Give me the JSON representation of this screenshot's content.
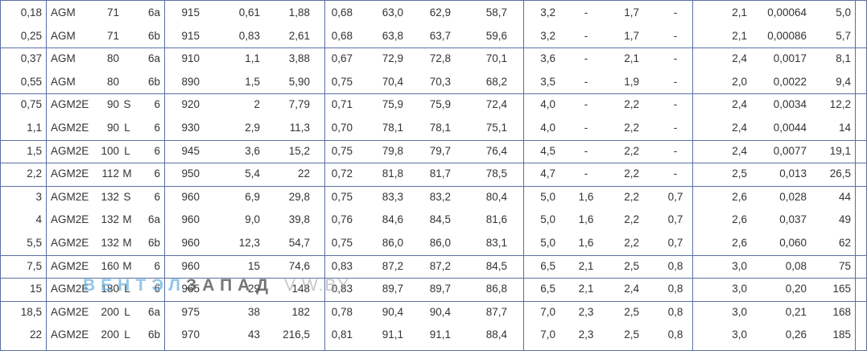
{
  "colors": {
    "grid": "#5b6fa3",
    "text": "#333333",
    "watermark_blue": "#6fb3df"
  },
  "watermark": {
    "part1": "ВЕНТ",
    "part2": "ЭЛ",
    "part3": "ЗАПАД",
    "part4": "V.W.BY"
  },
  "groups": [
    {
      "rows": [
        [
          "0,18",
          "AGM",
          "71",
          "",
          "6a",
          "915",
          "0,61",
          "1,88",
          "0,68",
          "63,0",
          "62,9",
          "58,7",
          "3,2",
          "-",
          "1,7",
          "-",
          "2,1",
          "0,00064",
          "5,0"
        ],
        [
          "0,25",
          "AGM",
          "71",
          "",
          "6b",
          "915",
          "0,83",
          "2,61",
          "0,68",
          "63,8",
          "63,7",
          "59,6",
          "3,2",
          "-",
          "1,7",
          "-",
          "2,1",
          "0,00086",
          "5,7"
        ]
      ]
    },
    {
      "rows": [
        [
          "0,37",
          "AGM",
          "80",
          "",
          "6a",
          "910",
          "1,1",
          "3,88",
          "0,67",
          "72,9",
          "72,8",
          "70,1",
          "3,6",
          "-",
          "2,1",
          "-",
          "2,4",
          "0,0017",
          "8,1"
        ],
        [
          "0,55",
          "AGM",
          "80",
          "",
          "6b",
          "890",
          "1,5",
          "5,90",
          "0,75",
          "70,4",
          "70,3",
          "68,2",
          "3,5",
          "-",
          "1,9",
          "-",
          "2,0",
          "0,0022",
          "9,4"
        ]
      ]
    },
    {
      "rows": [
        [
          "0,75",
          "AGM2E",
          "90",
          "S",
          "6",
          "920",
          "2",
          "7,79",
          "0,71",
          "75,9",
          "75,9",
          "72,4",
          "4,0",
          "-",
          "2,2",
          "-",
          "2,4",
          "0,0034",
          "12,2"
        ],
        [
          "1,1",
          "AGM2E",
          "90",
          "L",
          "6",
          "930",
          "2,9",
          "11,3",
          "0,70",
          "78,1",
          "78,1",
          "75,1",
          "4,0",
          "-",
          "2,2",
          "-",
          "2,4",
          "0,0044",
          "14"
        ]
      ]
    },
    {
      "rows": [
        [
          "1,5",
          "AGM2E",
          "100",
          "L",
          "6",
          "945",
          "3,6",
          "15,2",
          "0,75",
          "79,8",
          "79,7",
          "76,4",
          "4,5",
          "-",
          "2,2",
          "-",
          "2,4",
          "0,0077",
          "19,1"
        ]
      ]
    },
    {
      "rows": [
        [
          "2,2",
          "AGM2E",
          "112",
          "M",
          "6",
          "950",
          "5,4",
          "22",
          "0,72",
          "81,8",
          "81,7",
          "78,5",
          "4,7",
          "-",
          "2,2",
          "-",
          "2,5",
          "0,013",
          "26,5"
        ]
      ]
    },
    {
      "rows": [
        [
          "3",
          "AGM2E",
          "132",
          "S",
          "6",
          "960",
          "6,9",
          "29,8",
          "0,75",
          "83,3",
          "83,2",
          "80,4",
          "5,0",
          "1,6",
          "2,2",
          "0,7",
          "2,6",
          "0,028",
          "44"
        ],
        [
          "4",
          "AGM2E",
          "132",
          "M",
          "6a",
          "960",
          "9,0",
          "39,8",
          "0,76",
          "84,6",
          "84,5",
          "81,6",
          "5,0",
          "1,6",
          "2,2",
          "0,7",
          "2,6",
          "0,037",
          "49"
        ],
        [
          "5,5",
          "AGM2E",
          "132",
          "M",
          "6b",
          "960",
          "12,3",
          "54,7",
          "0,75",
          "86,0",
          "86,0",
          "83,1",
          "5,0",
          "1,6",
          "2,2",
          "0,7",
          "2,6",
          "0,060",
          "62"
        ]
      ]
    },
    {
      "rows": [
        [
          "7,5",
          "AGM2E",
          "160",
          "M",
          "6",
          "960",
          "15",
          "74,6",
          "0,83",
          "87,2",
          "87,2",
          "84,5",
          "6,5",
          "2,1",
          "2,5",
          "0,8",
          "3,0",
          "0,08",
          "75"
        ]
      ]
    },
    {
      "rows": [
        [
          "15",
          "AGM2E",
          "180",
          "L",
          "6",
          "965",
          "29",
          "148",
          "0,83",
          "89,7",
          "89,7",
          "86,8",
          "6,5",
          "2,1",
          "2,4",
          "0,8",
          "3,0",
          "0,20",
          "165"
        ]
      ]
    },
    {
      "rows": [
        [
          "18,5",
          "AGM2E",
          "200",
          "L",
          "6a",
          "975",
          "38",
          "182",
          "0,78",
          "90,4",
          "90,4",
          "87,7",
          "7,0",
          "2,3",
          "2,5",
          "0,8",
          "3,0",
          "0,21",
          "168"
        ],
        [
          "22",
          "AGM2E",
          "200",
          "L",
          "6b",
          "970",
          "43",
          "216,5",
          "0,81",
          "91,1",
          "91,1",
          "88,4",
          "7,0",
          "2,3",
          "2,5",
          "0,8",
          "3,0",
          "0,26",
          "185"
        ]
      ]
    }
  ]
}
